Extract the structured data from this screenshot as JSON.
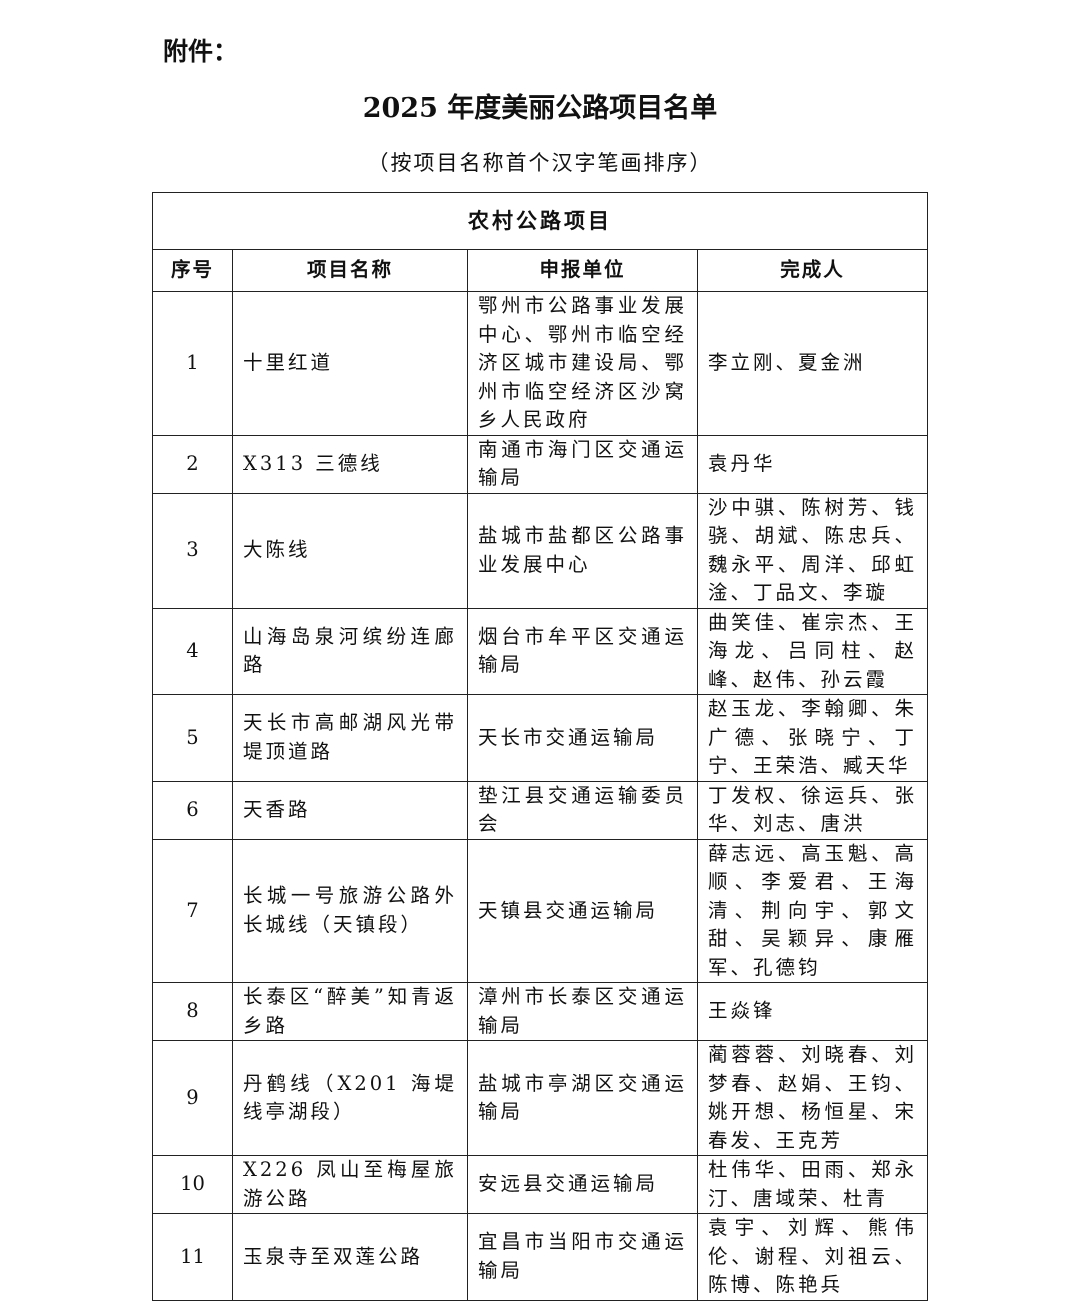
{
  "header": {
    "attachment": "附件：",
    "title": "2025 年度美丽公路项目名单",
    "subtitle": "（按项目名称首个汉字笔画排序）"
  },
  "table": {
    "section": "农村公路项目",
    "columns": [
      "序号",
      "项目名称",
      "申报单位",
      "完成人"
    ],
    "rows": [
      {
        "no": "1",
        "name": "十里红道",
        "unit": "鄂州市公路事业发展中心、鄂州市临空经济区城市建设局、鄂州市临空经济区沙窝乡人民政府",
        "people": "李立刚、夏金洲"
      },
      {
        "no": "2",
        "name": "X313 三德线",
        "unit": "南通市海门区交通运输局",
        "people": "袁丹华"
      },
      {
        "no": "3",
        "name": "大陈线",
        "unit": "盐城市盐都区公路事业发展中心",
        "people": "沙中骐、陈树芳、钱骁、胡斌、陈忠兵、魏永平、周洋、邱虹淦、丁品文、李璇"
      },
      {
        "no": "4",
        "name": "山海岛泉河缤纷连廊路",
        "unit": "烟台市牟平区交通运输局",
        "people": "曲笑佳、崔宗杰、王海龙、吕同柱、赵峰、赵伟、孙云霞"
      },
      {
        "no": "5",
        "name": "天长市高邮湖风光带堤顶道路",
        "unit": "天长市交通运输局",
        "people": "赵玉龙、李翰卿、朱广德、张晓宁、丁宁、王荣浩、臧天华"
      },
      {
        "no": "6",
        "name": "天香路",
        "unit": "垫江县交通运输委员会",
        "people": "丁发权、徐运兵、张华、刘志、唐洪"
      },
      {
        "no": "7",
        "name": "长城一号旅游公路外长城线（天镇段）",
        "unit": "天镇县交通运输局",
        "people": "薛志远、高玉魁、高顺、李爱君、王海清、荆向宇、郭文甜、吴颖异、康雁军、孔德钧"
      },
      {
        "no": "8",
        "name": "长泰区“醉美”知青返乡路",
        "unit": "漳州市长泰区交通运输局",
        "people": "王焱锋"
      },
      {
        "no": "9",
        "name": "丹鹤线（X201 海堤线亭湖段）",
        "unit": "盐城市亭湖区交通运输局",
        "people": "蔺蓉蓉、刘晓春、刘梦春、赵娟、王钧、姚开想、杨恒星、宋春发、王克芳"
      },
      {
        "no": "10",
        "name": "X226 凤山至梅屋旅游公路",
        "unit": "安远县交通运输局",
        "people": "杜伟华、田雨、郑永汀、唐域荣、杜青"
      },
      {
        "no": "11",
        "name": "玉泉寺至双莲公路",
        "unit": "宜昌市当阳市交通运输局",
        "people": "袁宇、刘辉、熊伟伦、谢程、刘祖云、陈博、陈艳兵"
      }
    ]
  }
}
